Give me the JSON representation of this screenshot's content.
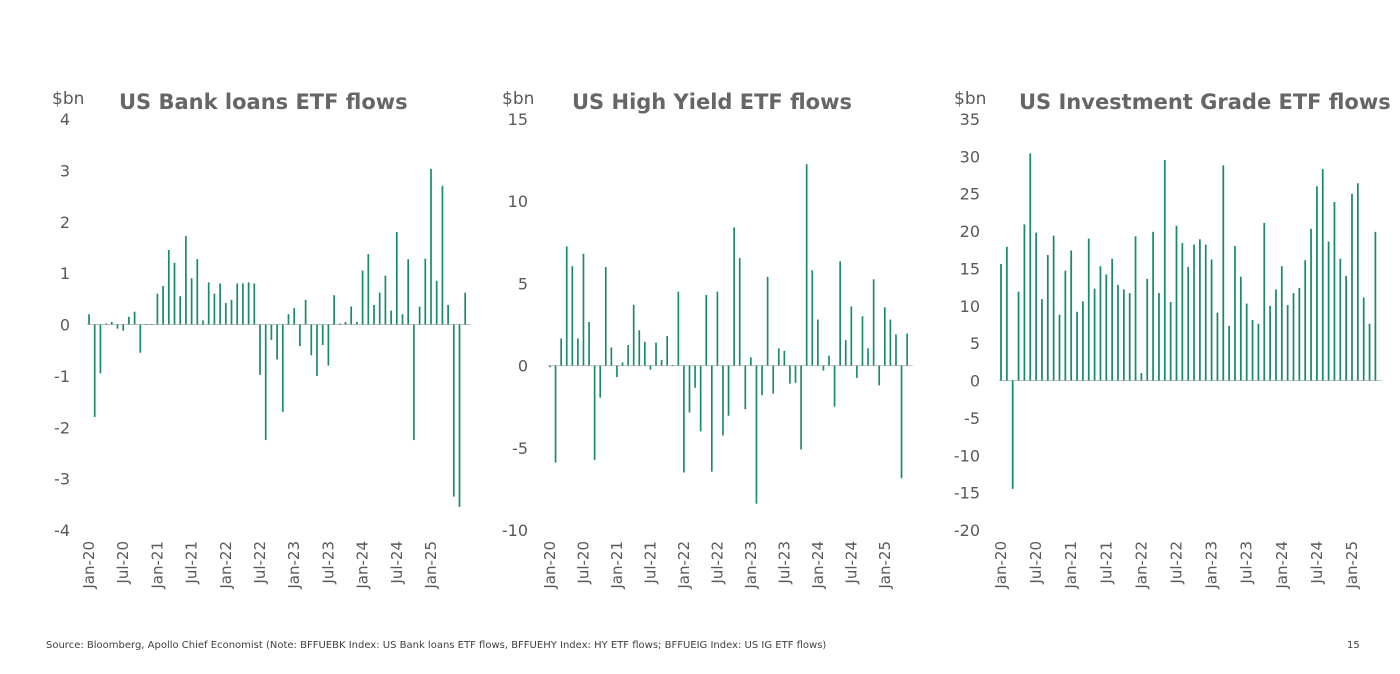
{
  "chart_data": [
    {
      "type": "bar",
      "title": "US Bank loans ETF flows",
      "ylabel": "$bn",
      "ylim": [
        -4,
        4
      ],
      "yticks": [
        4,
        3,
        2,
        1,
        0,
        -1,
        -2,
        -3,
        -4
      ],
      "start_month": "Jan-20",
      "xtick_labels": [
        "Jan-20",
        "Jul-20",
        "Jan-21",
        "Jul-21",
        "Jan-22",
        "Jul-22",
        "Jan-23",
        "Jul-23",
        "Jan-24",
        "Jul-24",
        "Jan-25"
      ],
      "values": [
        0.2,
        -1.8,
        -0.95,
        0.02,
        0.05,
        -0.08,
        -0.12,
        0.15,
        0.25,
        -0.55,
        0.0,
        0.0,
        0.6,
        0.75,
        1.45,
        1.2,
        0.55,
        1.72,
        0.9,
        1.27,
        0.08,
        0.82,
        0.6,
        0.8,
        0.42,
        0.48,
        0.8,
        0.8,
        0.82,
        0.8,
        -0.98,
        -2.25,
        -0.3,
        -0.68,
        -1.7,
        0.2,
        0.32,
        -0.42,
        0.48,
        -0.6,
        -1.0,
        -0.4,
        -0.8,
        0.57,
        0.02,
        0.05,
        0.35,
        0.05,
        1.05,
        1.37,
        0.38,
        0.62,
        0.95,
        0.27,
        1.8,
        0.2,
        1.27,
        -2.25,
        0.35,
        1.28,
        3.03,
        0.85,
        2.7,
        0.38,
        -3.35,
        -3.55,
        0.62
      ]
    },
    {
      "type": "bar",
      "title": "US High Yield ETF flows",
      "ylabel": "$bn",
      "ylim": [
        -10,
        15
      ],
      "yticks": [
        15,
        10,
        5,
        0,
        -5,
        -10
      ],
      "start_month": "Jan-20",
      "xtick_labels": [
        "Jan-20",
        "Jul-20",
        "Jan-21",
        "Jul-21",
        "Jan-22",
        "Jul-22",
        "Jan-23",
        "Jul-23",
        "Jan-24",
        "Jul-24",
        "Jan-25"
      ],
      "values": [
        -0.1,
        -5.9,
        1.65,
        7.25,
        6.05,
        1.65,
        6.8,
        2.65,
        -5.75,
        -1.95,
        6.0,
        1.1,
        -0.7,
        0.2,
        1.25,
        3.7,
        2.15,
        1.45,
        -0.25,
        1.4,
        0.35,
        1.8,
        0.0,
        4.5,
        -6.5,
        -2.85,
        -1.35,
        -4.0,
        4.3,
        -6.45,
        4.5,
        -4.25,
        -3.05,
        8.4,
        6.55,
        -2.65,
        0.5,
        -8.4,
        -1.8,
        5.4,
        -1.7,
        1.05,
        0.9,
        -1.1,
        -1.05,
        -5.1,
        12.25,
        5.8,
        2.8,
        -0.3,
        0.6,
        -2.5,
        6.35,
        1.55,
        3.6,
        -0.75,
        3.0,
        1.05,
        5.25,
        -1.2,
        3.55,
        2.8,
        1.9,
        -6.85,
        1.95
      ]
    },
    {
      "type": "bar",
      "title": "US Investment Grade ETF flows",
      "ylabel": "$bn",
      "ylim": [
        -20,
        35
      ],
      "yticks": [
        35,
        30,
        25,
        20,
        15,
        10,
        5,
        0,
        -5,
        -10,
        -15,
        -20
      ],
      "start_month": "Jan-20",
      "xtick_labels": [
        "Jan-20",
        "Jul-20",
        "Jan-21",
        "Jul-21",
        "Jan-22",
        "Jul-22",
        "Jan-23",
        "Jul-23",
        "Jan-24",
        "Jul-24",
        "Jan-25"
      ],
      "values": [
        15.6,
        17.9,
        -14.5,
        11.9,
        20.9,
        30.4,
        19.8,
        10.9,
        16.8,
        19.4,
        8.8,
        14.7,
        17.4,
        9.2,
        10.6,
        19.0,
        12.3,
        15.3,
        14.2,
        16.3,
        12.8,
        12.2,
        11.7,
        19.3,
        1.0,
        13.6,
        19.9,
        11.7,
        29.5,
        10.5,
        20.7,
        18.4,
        15.2,
        18.2,
        18.9,
        18.2,
        16.2,
        9.1,
        28.8,
        7.3,
        18.0,
        13.9,
        10.3,
        8.1,
        7.6,
        21.1,
        10.0,
        12.2,
        15.3,
        10.1,
        11.7,
        12.4,
        16.1,
        20.3,
        26.0,
        28.3,
        18.6,
        23.9,
        16.3,
        14.0,
        25.0,
        26.4,
        11.1,
        7.6,
        19.9
      ]
    }
  ],
  "footer": {
    "source": "Source: Bloomberg, Apollo Chief Economist (Note: BFFUEBK Index: US Bank loans ETF flows, BFFUEHY Index: HY ETF flows; BFFUEIG Index: US IG ETF flows)",
    "page_number": "15"
  },
  "colors": {
    "bar": "#1a8a6b",
    "title": "#666666",
    "text": "#595959"
  }
}
